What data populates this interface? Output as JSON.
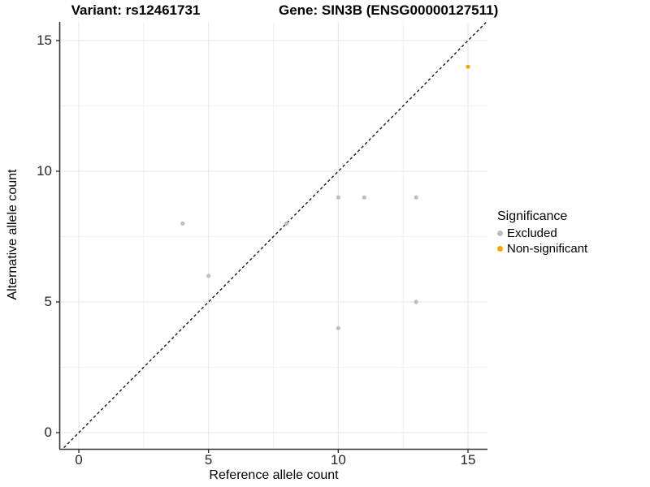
{
  "chart_data": {
    "type": "scatter",
    "titles": {
      "left": "Variant: rs12461731",
      "right": "Gene: SIN3B (ENSG00000127511)"
    },
    "xlabel": "Reference allele count",
    "ylabel": "Alternative allele count",
    "x_ticks": [
      0,
      5,
      10,
      15
    ],
    "y_ticks": [
      0,
      5,
      10,
      15
    ],
    "x_minor_ticks": [
      2.5,
      7.5,
      12.5
    ],
    "y_minor_ticks": [
      2.5,
      7.5,
      12.5
    ],
    "xlim": [
      -0.72,
      15.78
    ],
    "ylim": [
      -0.72,
      15.78
    ],
    "grid": true,
    "legend": {
      "title": "Significance",
      "position": "right"
    },
    "series": [
      {
        "name": "Excluded",
        "color": "#BEBEBE",
        "points": [
          [
            4,
            8
          ],
          [
            5,
            6
          ],
          [
            8,
            8
          ],
          [
            10,
            4
          ],
          [
            10,
            9
          ],
          [
            11,
            9
          ],
          [
            13,
            5
          ],
          [
            13,
            9
          ]
        ]
      },
      {
        "name": "Non-significant",
        "color": "#FFA500",
        "points": [
          [
            15,
            14
          ]
        ]
      }
    ],
    "identity_line": {
      "style": "dashed",
      "slope": 1,
      "intercept": 0,
      "color": "#1A1A1A"
    },
    "colors": {
      "background": "#FFFFFF",
      "grid_major": "#E6E6E6",
      "grid_minor": "#F2F2F2",
      "axis": "#333333",
      "tick_text": "#262626"
    }
  }
}
